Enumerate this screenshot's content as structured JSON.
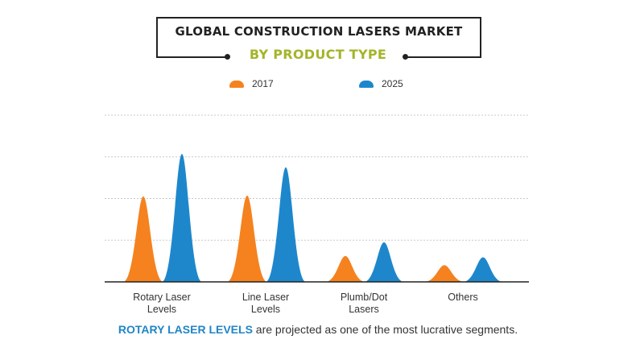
{
  "header": {
    "title": "GLOBAL CONSTRUCTION LASERS MARKET",
    "subtitle": "BY PRODUCT TYPE"
  },
  "colors": {
    "series_2017": "#f5821f",
    "series_2025": "#1e87cc",
    "subtitle": "#a4b42a",
    "highlight": "#2085c7"
  },
  "chart_data": {
    "type": "area",
    "title": "GLOBAL CONSTRUCTION LASERS MARKET",
    "subtitle": "BY PRODUCT TYPE",
    "categories": [
      "Rotary Laser Levels",
      "Line Laser Levels",
      "Plumb/Dot Lasers",
      "Others"
    ],
    "category_label_lines": [
      [
        "Rotary Laser",
        "Levels"
      ],
      [
        "Line Laser",
        "Levels"
      ],
      [
        "Plumb/Dot",
        "Lasers"
      ],
      [
        "Others"
      ]
    ],
    "series": [
      {
        "name": "2017",
        "values": [
          2.05,
          2.07,
          0.62,
          0.4
        ]
      },
      {
        "name": "2025",
        "values": [
          3.07,
          2.75,
          0.95,
          0.59
        ]
      }
    ],
    "ylim": [
      0,
      4
    ],
    "grid": true,
    "legend_position": "top-center",
    "xlabel": "",
    "ylabel": ""
  },
  "footnote": {
    "highlight": "ROTARY LASER LEVELS",
    "text": " are projected as one of the most lucrative segments."
  }
}
